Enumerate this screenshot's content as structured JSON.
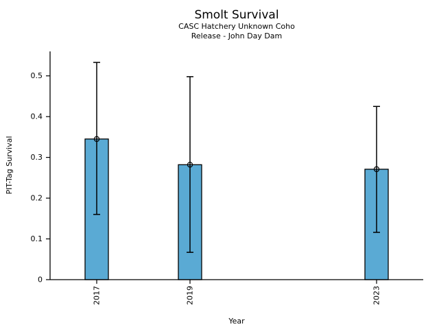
{
  "chart_data": {
    "type": "bar",
    "title": "Smolt Survival",
    "subtitle_lines": [
      "CASC Hatchery Unknown Coho",
      "Release - John Day Dam"
    ],
    "xlabel": "Year",
    "ylabel": "PIT-Tag Survival",
    "categories": [
      "2017",
      "2019",
      "2023"
    ],
    "x_years": [
      2017,
      2019,
      2023
    ],
    "values": [
      0.345,
      0.282,
      0.271
    ],
    "error_low": [
      0.16,
      0.067,
      0.116
    ],
    "error_high": [
      0.533,
      0.498,
      0.425
    ],
    "xlim": [
      2016,
      2024
    ],
    "ylim": [
      0,
      0.56
    ],
    "yticks": [
      0,
      0.1,
      0.2,
      0.3,
      0.4,
      0.5
    ],
    "ytick_labels": [
      "0",
      "0.1",
      "0.2",
      "0.3",
      "0.4",
      "0.5"
    ],
    "bar_width_years": 0.5,
    "bar_color": "#5AAAD4",
    "bar_edge_color": "#000000",
    "error_color": "#000000",
    "axis_color": "#000000",
    "marker": "open-circle",
    "grid": false,
    "legend": null
  }
}
